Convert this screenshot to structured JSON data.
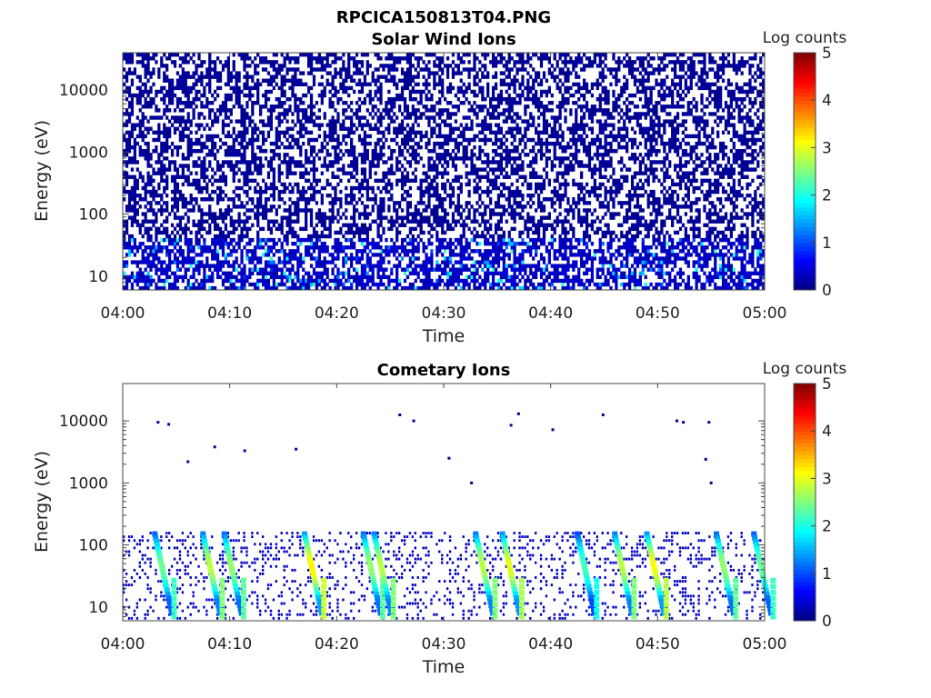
{
  "figure": {
    "suptitle": "RPCICA150813T04.PNG"
  },
  "chart_data": [
    {
      "type": "heatmap",
      "title": "Solar Wind Ions",
      "xlabel": "Time",
      "ylabel": "Energy (eV)",
      "x_range": [
        "04:00",
        "05:00"
      ],
      "x_ticks": [
        "04:00",
        "04:10",
        "04:20",
        "04:30",
        "04:40",
        "04:50",
        "05:00"
      ],
      "y_scale": "log",
      "y_range": [
        6,
        40000
      ],
      "y_ticks": [
        10,
        100,
        1000,
        10000
      ],
      "y_tick_labels": [
        "10",
        "100",
        "1000",
        "10000"
      ],
      "colorbar": {
        "label": "Log counts",
        "range": [
          0,
          5
        ],
        "ticks": [
          "0",
          "1",
          "2",
          "3",
          "4",
          "5"
        ],
        "colormap": "jet"
      },
      "description_values": {
        "background_level": 0.2,
        "high_energy_fill_fraction": 0.5,
        "low_energy_band_eV": [
          6,
          40
        ],
        "low_energy_peak_level": 2.2
      }
    },
    {
      "type": "heatmap",
      "title": "Cometary Ions",
      "xlabel": "Time",
      "ylabel": "Energy (eV)",
      "x_range": [
        "04:00",
        "05:00"
      ],
      "x_ticks": [
        "04:00",
        "04:10",
        "04:20",
        "04:30",
        "04:40",
        "04:50",
        "05:00"
      ],
      "y_scale": "log",
      "y_range": [
        6,
        40000
      ],
      "y_ticks": [
        10,
        100,
        1000,
        10000
      ],
      "y_tick_labels": [
        "10",
        "100",
        "1000",
        "10000"
      ],
      "colorbar": {
        "label": "Log counts",
        "range": [
          0,
          5
        ],
        "ticks": [
          "0",
          "1",
          "2",
          "3",
          "4",
          "5"
        ],
        "colormap": "jet"
      },
      "bursts": [
        {
          "t_min": 3.0,
          "level": 2.4
        },
        {
          "t_min": 7.5,
          "level": 2.8
        },
        {
          "t_min": 9.5,
          "level": 2.6
        },
        {
          "t_min": 17.0,
          "level": 3.2
        },
        {
          "t_min": 22.5,
          "level": 2.6
        },
        {
          "t_min": 23.5,
          "level": 2.8
        },
        {
          "t_min": 33.0,
          "level": 2.8
        },
        {
          "t_min": 35.5,
          "level": 3.0
        },
        {
          "t_min": 42.5,
          "level": 2.2
        },
        {
          "t_min": 46.0,
          "level": 2.8
        },
        {
          "t_min": 49.0,
          "level": 3.1
        },
        {
          "t_min": 55.5,
          "level": 2.6
        },
        {
          "t_min": 59.0,
          "level": 2.4
        }
      ],
      "sparse_high_energy_points": [
        {
          "t_min": 3.3,
          "e_eV": 9500
        },
        {
          "t_min": 4.3,
          "e_eV": 8800
        },
        {
          "t_min": 6.1,
          "e_eV": 2200
        },
        {
          "t_min": 8.6,
          "e_eV": 3800
        },
        {
          "t_min": 11.4,
          "e_eV": 3300
        },
        {
          "t_min": 16.2,
          "e_eV": 3500
        },
        {
          "t_min": 25.9,
          "e_eV": 12500
        },
        {
          "t_min": 27.2,
          "e_eV": 10000
        },
        {
          "t_min": 30.5,
          "e_eV": 2500
        },
        {
          "t_min": 32.6,
          "e_eV": 1000
        },
        {
          "t_min": 36.3,
          "e_eV": 8500
        },
        {
          "t_min": 37.0,
          "e_eV": 13000
        },
        {
          "t_min": 40.2,
          "e_eV": 7200
        },
        {
          "t_min": 44.9,
          "e_eV": 12500
        },
        {
          "t_min": 51.8,
          "e_eV": 10000
        },
        {
          "t_min": 52.4,
          "e_eV": 9500
        },
        {
          "t_min": 54.8,
          "e_eV": 9500
        },
        {
          "t_min": 54.5,
          "e_eV": 2400
        },
        {
          "t_min": 55.0,
          "e_eV": 1000
        }
      ]
    }
  ]
}
